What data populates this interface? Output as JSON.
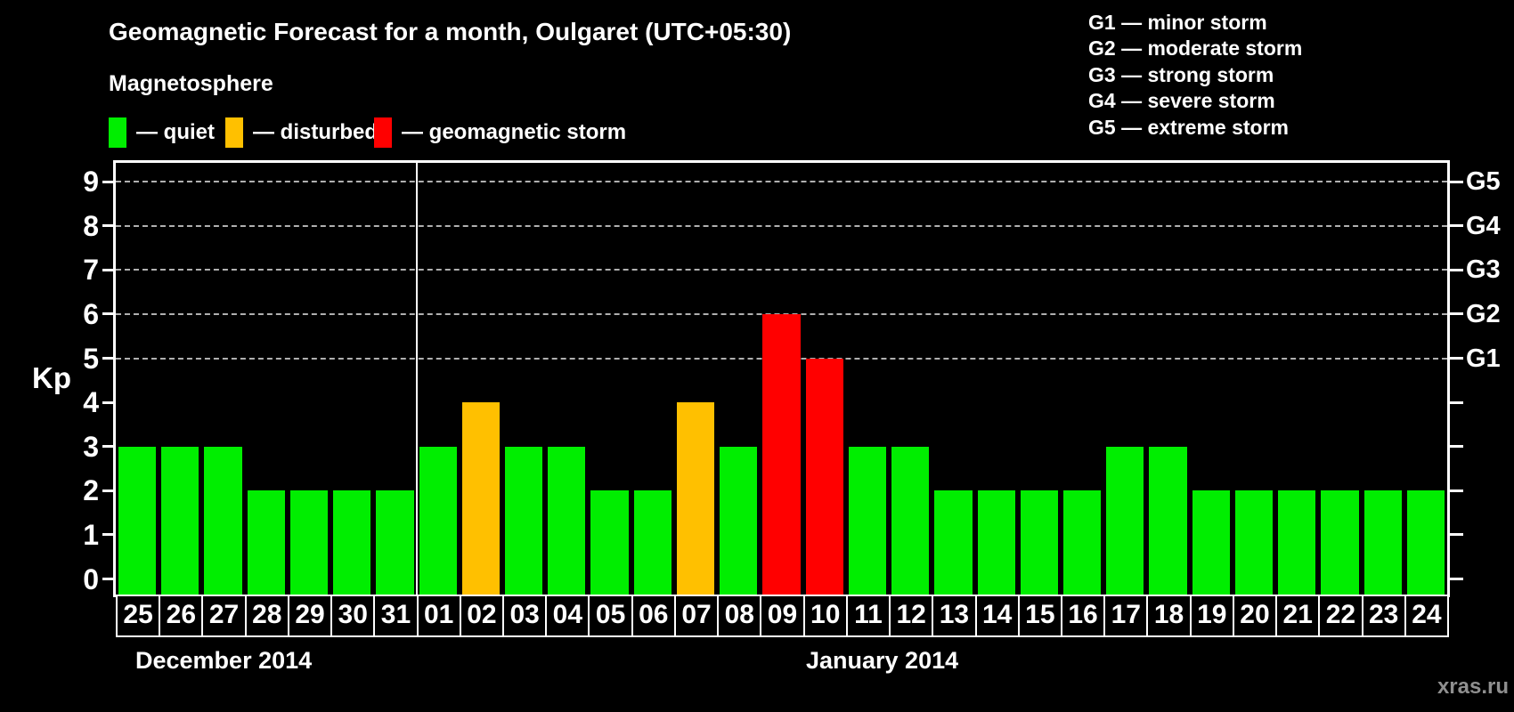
{
  "title": "Geomagnetic Forecast for a month, Oulgaret (UTC+05:30)",
  "watermark": "xras.ru",
  "colors": {
    "background": "#000000",
    "text": "#ffffff",
    "grid": "#b0b0b0",
    "axis": "#ffffff",
    "watermark": "#8f8f8f",
    "quiet": "#00ee00",
    "disturbed": "#ffc000",
    "storm": "#ff0000"
  },
  "legend": {
    "heading": "Magnetosphere",
    "items": [
      {
        "key": "quiet",
        "label": "— quiet",
        "color": "#00ee00"
      },
      {
        "key": "disturbed",
        "label": "— disturbed",
        "color": "#ffc000"
      },
      {
        "key": "storm",
        "label": "— geomagnetic storm",
        "color": "#ff0000"
      }
    ]
  },
  "g_scale": [
    {
      "label": "G1 — minor storm"
    },
    {
      "label": "G2 — moderate storm"
    },
    {
      "label": "G3 — strong storm"
    },
    {
      "label": "G4 — severe storm"
    },
    {
      "label": "G5 — extreme storm"
    }
  ],
  "axes": {
    "y_label": "Kp",
    "y_ticks": [
      0,
      1,
      2,
      3,
      4,
      5,
      6,
      7,
      8,
      9
    ],
    "gridlines_kp": [
      5,
      6,
      7,
      8,
      9
    ],
    "right_labels": [
      {
        "kp": 5,
        "label": "G1"
      },
      {
        "kp": 6,
        "label": "G2"
      },
      {
        "kp": 7,
        "label": "G3"
      },
      {
        "kp": 8,
        "label": "G4"
      },
      {
        "kp": 9,
        "label": "G5"
      }
    ]
  },
  "months": [
    {
      "name": "December 2014",
      "days": [
        {
          "d": "25",
          "kp": 3,
          "status": "quiet"
        },
        {
          "d": "26",
          "kp": 3,
          "status": "quiet"
        },
        {
          "d": "27",
          "kp": 3,
          "status": "quiet"
        },
        {
          "d": "28",
          "kp": 2,
          "status": "quiet"
        },
        {
          "d": "29",
          "kp": 2,
          "status": "quiet"
        },
        {
          "d": "30",
          "kp": 2,
          "status": "quiet"
        },
        {
          "d": "31",
          "kp": 2,
          "status": "quiet"
        }
      ]
    },
    {
      "name": "January 2014",
      "days": [
        {
          "d": "01",
          "kp": 3,
          "status": "quiet"
        },
        {
          "d": "02",
          "kp": 4,
          "status": "disturbed"
        },
        {
          "d": "03",
          "kp": 3,
          "status": "quiet"
        },
        {
          "d": "04",
          "kp": 3,
          "status": "quiet"
        },
        {
          "d": "05",
          "kp": 2,
          "status": "quiet"
        },
        {
          "d": "06",
          "kp": 2,
          "status": "quiet"
        },
        {
          "d": "07",
          "kp": 4,
          "status": "disturbed"
        },
        {
          "d": "08",
          "kp": 3,
          "status": "quiet"
        },
        {
          "d": "09",
          "kp": 6,
          "status": "storm"
        },
        {
          "d": "10",
          "kp": 5,
          "status": "storm"
        },
        {
          "d": "11",
          "kp": 3,
          "status": "quiet"
        },
        {
          "d": "12",
          "kp": 3,
          "status": "quiet"
        },
        {
          "d": "13",
          "kp": 2,
          "status": "quiet"
        },
        {
          "d": "14",
          "kp": 2,
          "status": "quiet"
        },
        {
          "d": "15",
          "kp": 2,
          "status": "quiet"
        },
        {
          "d": "16",
          "kp": 2,
          "status": "quiet"
        },
        {
          "d": "17",
          "kp": 3,
          "status": "quiet"
        },
        {
          "d": "18",
          "kp": 3,
          "status": "quiet"
        },
        {
          "d": "19",
          "kp": 2,
          "status": "quiet"
        },
        {
          "d": "20",
          "kp": 2,
          "status": "quiet"
        },
        {
          "d": "21",
          "kp": 2,
          "status": "quiet"
        },
        {
          "d": "22",
          "kp": 2,
          "status": "quiet"
        },
        {
          "d": "23",
          "kp": 2,
          "status": "quiet"
        },
        {
          "d": "24",
          "kp": 2,
          "status": "quiet"
        }
      ]
    }
  ],
  "chart_data": {
    "type": "bar",
    "title": "Geomagnetic Forecast for a month, Oulgaret (UTC+05:30)",
    "categories": [
      "Dec 25",
      "Dec 26",
      "Dec 27",
      "Dec 28",
      "Dec 29",
      "Dec 30",
      "Dec 31",
      "Jan 01",
      "Jan 02",
      "Jan 03",
      "Jan 04",
      "Jan 05",
      "Jan 06",
      "Jan 07",
      "Jan 08",
      "Jan 09",
      "Jan 10",
      "Jan 11",
      "Jan 12",
      "Jan 13",
      "Jan 14",
      "Jan 15",
      "Jan 16",
      "Jan 17",
      "Jan 18",
      "Jan 19",
      "Jan 20",
      "Jan 21",
      "Jan 22",
      "Jan 23",
      "Jan 24"
    ],
    "values": [
      3,
      3,
      3,
      2,
      2,
      2,
      2,
      3,
      4,
      3,
      3,
      2,
      2,
      4,
      3,
      6,
      5,
      3,
      3,
      2,
      2,
      2,
      2,
      3,
      3,
      2,
      2,
      2,
      2,
      2,
      2
    ],
    "point_statuses": [
      "quiet",
      "quiet",
      "quiet",
      "quiet",
      "quiet",
      "quiet",
      "quiet",
      "quiet",
      "disturbed",
      "quiet",
      "quiet",
      "quiet",
      "quiet",
      "disturbed",
      "quiet",
      "storm",
      "storm",
      "quiet",
      "quiet",
      "quiet",
      "quiet",
      "quiet",
      "quiet",
      "quiet",
      "quiet",
      "quiet",
      "quiet",
      "quiet",
      "quiet",
      "quiet",
      "quiet"
    ],
    "status_colors": {
      "quiet": "#00ee00",
      "disturbed": "#ffc000",
      "storm": "#ff0000"
    },
    "xlabel": "",
    "ylabel": "Kp",
    "ylim": [
      0,
      9
    ],
    "grid": "dashed horizontal lines at Kp 5-9 only",
    "right_axis_labels": {
      "5": "G1",
      "6": "G2",
      "7": "G3",
      "8": "G4",
      "9": "G5"
    },
    "legend_entries": [
      "quiet",
      "disturbed",
      "geomagnetic storm"
    ],
    "legend_position": "top-left",
    "x_groups": [
      {
        "label": "December 2014",
        "count": 7
      },
      {
        "label": "January 2014",
        "count": 24
      }
    ]
  }
}
